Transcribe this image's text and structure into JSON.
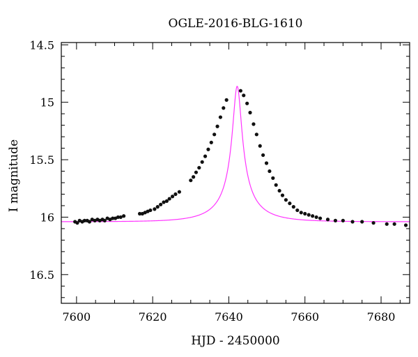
{
  "chart_data": {
    "type": "scatter",
    "title": "OGLE-2016-BLG-1610",
    "xlabel": "HJD - 2450000",
    "ylabel": "I magnitude",
    "xlim": [
      7596,
      7687.5
    ],
    "ylim": [
      16.75,
      14.48
    ],
    "y_inverted": true,
    "x_ticks": [
      "7600",
      "7620",
      "7640",
      "7660",
      "7680"
    ],
    "y_ticks": [
      "14.5",
      "15",
      "15.5",
      "16",
      "16.5"
    ],
    "x_tick_values": [
      7600,
      7620,
      7640,
      7660,
      7680
    ],
    "y_tick_values": [
      14.5,
      15,
      15.5,
      16,
      16.5
    ],
    "series": [
      {
        "kind": "points",
        "color": "#111111",
        "points": [
          [
            7599.6,
            16.04
          ],
          [
            7600.2,
            16.05
          ],
          [
            7600.8,
            16.03
          ],
          [
            7601.5,
            16.04
          ],
          [
            7602.1,
            16.03
          ],
          [
            7602.8,
            16.03
          ],
          [
            7603.4,
            16.04
          ],
          [
            7604.1,
            16.02
          ],
          [
            7604.8,
            16.03
          ],
          [
            7605.5,
            16.02
          ],
          [
            7606.1,
            16.03
          ],
          [
            7606.8,
            16.02
          ],
          [
            7607.4,
            16.03
          ],
          [
            7608.1,
            16.01
          ],
          [
            7608.8,
            16.02
          ],
          [
            7609.5,
            16.01
          ],
          [
            7610.2,
            16.01
          ],
          [
            7610.9,
            16.0
          ],
          [
            7611.6,
            16.0
          ],
          [
            7612.4,
            15.99
          ],
          [
            7616.6,
            15.97
          ],
          [
            7617.3,
            15.97
          ],
          [
            7618.0,
            15.96
          ],
          [
            7618.7,
            15.95
          ],
          [
            7619.4,
            15.94
          ],
          [
            7620.5,
            15.93
          ],
          [
            7621.3,
            15.91
          ],
          [
            7622.1,
            15.89
          ],
          [
            7622.9,
            15.87
          ],
          [
            7623.7,
            15.86
          ],
          [
            7624.4,
            15.84
          ],
          [
            7625.2,
            15.82
          ],
          [
            7626.0,
            15.8
          ],
          [
            7627.0,
            15.78
          ],
          [
            7630.0,
            15.68
          ],
          [
            7630.7,
            15.65
          ],
          [
            7631.4,
            15.61
          ],
          [
            7632.2,
            15.57
          ],
          [
            7633.0,
            15.52
          ],
          [
            7633.8,
            15.47
          ],
          [
            7634.6,
            15.41
          ],
          [
            7635.4,
            15.35
          ],
          [
            7636.2,
            15.28
          ],
          [
            7637.0,
            15.21
          ],
          [
            7637.8,
            15.13
          ],
          [
            7638.6,
            15.05
          ],
          [
            7639.4,
            14.98
          ],
          [
            7643.1,
            14.9
          ],
          [
            7643.9,
            14.94
          ],
          [
            7644.8,
            15.01
          ],
          [
            7645.6,
            15.09
          ],
          [
            7646.5,
            15.19
          ],
          [
            7647.3,
            15.28
          ],
          [
            7648.2,
            15.38
          ],
          [
            7649.0,
            15.46
          ],
          [
            7649.9,
            15.53
          ],
          [
            7650.7,
            15.6
          ],
          [
            7651.6,
            15.66
          ],
          [
            7652.4,
            15.72
          ],
          [
            7653.3,
            15.77
          ],
          [
            7654.1,
            15.81
          ],
          [
            7655.0,
            15.85
          ],
          [
            7656.0,
            15.88
          ],
          [
            7657.0,
            15.91
          ],
          [
            7658.0,
            15.94
          ],
          [
            7659.0,
            15.96
          ],
          [
            7660.0,
            15.97
          ],
          [
            7661.0,
            15.98
          ],
          [
            7662.0,
            15.99
          ],
          [
            7663.0,
            16.0
          ],
          [
            7664.0,
            16.01
          ],
          [
            7666.0,
            16.02
          ],
          [
            7668.0,
            16.03
          ],
          [
            7670.0,
            16.03
          ],
          [
            7672.5,
            16.04
          ],
          [
            7675.0,
            16.04
          ],
          [
            7678.0,
            16.05
          ],
          [
            7681.5,
            16.06
          ],
          [
            7683.5,
            16.06
          ],
          [
            7686.5,
            16.07
          ]
        ]
      },
      {
        "kind": "model",
        "color": "#ff33ff",
        "t0": 7642.2,
        "tE": 10.4,
        "baseline": 16.04,
        "peak_mag": 14.86
      }
    ]
  }
}
